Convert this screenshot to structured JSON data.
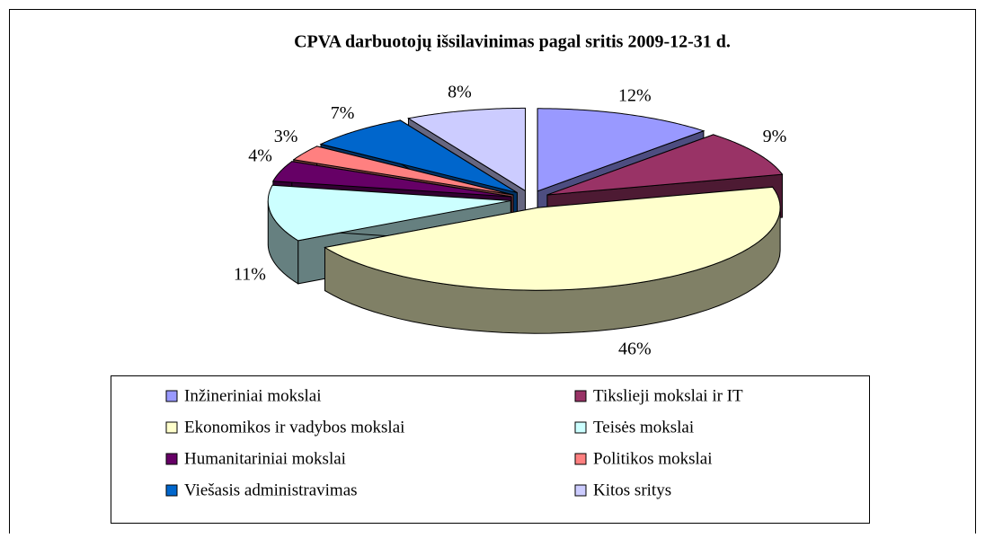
{
  "chart_data": {
    "type": "pie3d",
    "title": "CPVA darbuotojų išsilavinimas pagal sritis 2009-12-31 d.",
    "categories": [
      "Inžineriniai mokslai",
      "Tikslieji mokslai ir IT",
      "Ekonomikos ir vadybos mokslai",
      "Teisės mokslai",
      "Humanitariniai mokslai",
      "Politikos mokslai",
      "Viešasis administravimas",
      "Kitos sritys"
    ],
    "values": [
      12,
      9,
      46,
      11,
      4,
      3,
      7,
      8
    ],
    "value_labels": [
      "12%",
      "9%",
      "46%",
      "11%",
      "4%",
      "3%",
      "7%",
      "8%"
    ],
    "colors": [
      "#9999ff",
      "#993366",
      "#ffffcc",
      "#ccffff",
      "#660066",
      "#ff8080",
      "#0066cc",
      "#ccccff"
    ],
    "legend": "bottom"
  }
}
